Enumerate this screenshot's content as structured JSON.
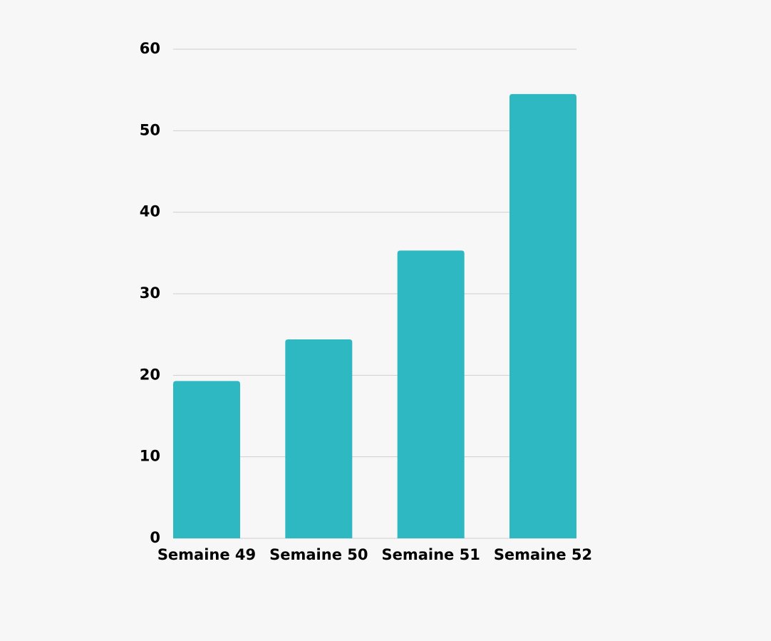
{
  "chart_data": {
    "type": "bar",
    "categories": [
      "Semaine 49",
      "Semaine 50",
      "Semaine 51",
      "Semaine 52"
    ],
    "values": [
      19.3,
      24.4,
      35.3,
      54.5
    ],
    "color": "#2eb8c2",
    "ylim": [
      0,
      60
    ],
    "yticks": [
      0,
      10,
      20,
      30,
      40,
      50,
      60
    ],
    "grid": true
  }
}
